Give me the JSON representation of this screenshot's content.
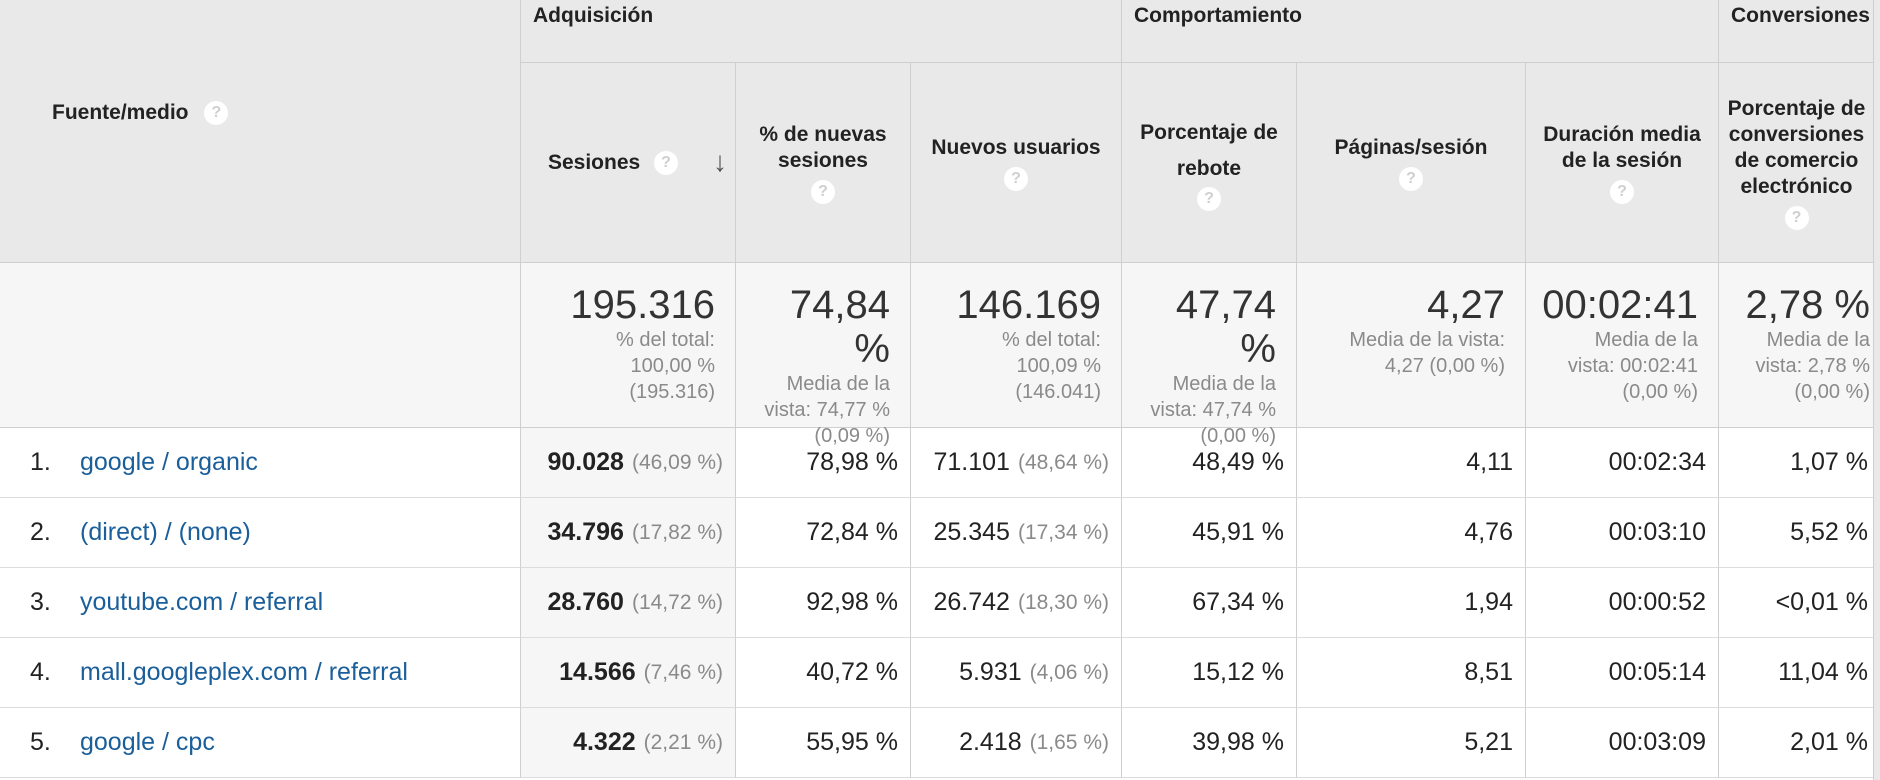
{
  "groups": {
    "acquisition": "Adquisición",
    "behavior": "Comportamiento",
    "conversions": "Conversiones"
  },
  "columns": {
    "source_medium": "Fuente/medio",
    "sessions": "Sesiones",
    "new_sessions_pct": "% de nuevas sesiones",
    "new_users": "Nuevos usuarios",
    "bounce_rate": "Porcentaje de rebote",
    "pages_session": "Páginas/sesión",
    "avg_duration": "Duración media de la sesión",
    "ecommerce_conversion": "Porcentaje de conversiones de comercio electrónico"
  },
  "help_glyph": "?",
  "sort_glyph": "↓",
  "totals": {
    "sessions": {
      "value": "195.316",
      "sub": "% del total:\n100,00 %\n(195.316)"
    },
    "new_sessions_pct": {
      "value": "74,84 %",
      "sub": "Media de la\nvista: 74,77 %\n(0,09 %)"
    },
    "new_users": {
      "value": "146.169",
      "sub": "% del total:\n100,09 %\n(146.041)"
    },
    "bounce_rate": {
      "value": "47,74 %",
      "sub": "Media de la\nvista: 47,74 %\n(0,00 %)"
    },
    "pages_session": {
      "value": "4,27",
      "sub": "Media de la vista:\n4,27 (0,00 %)"
    },
    "avg_duration": {
      "value": "00:02:41",
      "sub": "Media de la\nvista: 00:02:41\n(0,00 %)"
    },
    "ecommerce_conversion": {
      "value": "2,78 %",
      "sub": "Media de la\nvista: 2,78 %\n(0,00 %)"
    }
  },
  "rows": [
    {
      "rank": "1.",
      "source": "google / organic",
      "sessions": "90.028",
      "sessions_pct": "(46,09 %)",
      "new_sessions_pct": "78,98 %",
      "new_users": "71.101",
      "new_users_pct": "(48,64 %)",
      "bounce_rate": "48,49 %",
      "pages_session": "4,11",
      "avg_duration": "00:02:34",
      "ecommerce_conversion": "1,07 %"
    },
    {
      "rank": "2.",
      "source": "(direct) / (none)",
      "sessions": "34.796",
      "sessions_pct": "(17,82 %)",
      "new_sessions_pct": "72,84 %",
      "new_users": "25.345",
      "new_users_pct": "(17,34 %)",
      "bounce_rate": "45,91 %",
      "pages_session": "4,76",
      "avg_duration": "00:03:10",
      "ecommerce_conversion": "5,52 %"
    },
    {
      "rank": "3.",
      "source": "youtube.com / referral",
      "sessions": "28.760",
      "sessions_pct": "(14,72 %)",
      "new_sessions_pct": "92,98 %",
      "new_users": "26.742",
      "new_users_pct": "(18,30 %)",
      "bounce_rate": "67,34 %",
      "pages_session": "1,94",
      "avg_duration": "00:00:52",
      "ecommerce_conversion": "<0,01 %"
    },
    {
      "rank": "4.",
      "source": "mall.googleplex.com / referral",
      "sessions": "14.566",
      "sessions_pct": "(7,46 %)",
      "new_sessions_pct": "40,72 %",
      "new_users": "5.931",
      "new_users_pct": "(4,06 %)",
      "bounce_rate": "15,12 %",
      "pages_session": "8,51",
      "avg_duration": "00:05:14",
      "ecommerce_conversion": "11,04 %"
    },
    {
      "rank": "5.",
      "source": "google / cpc",
      "sessions": "4.322",
      "sessions_pct": "(2,21 %)",
      "new_sessions_pct": "55,95 %",
      "new_users": "2.418",
      "new_users_pct": "(1,65 %)",
      "bounce_rate": "39,98 %",
      "pages_session": "5,21",
      "avg_duration": "00:03:09",
      "ecommerce_conversion": "2,01 %"
    }
  ]
}
